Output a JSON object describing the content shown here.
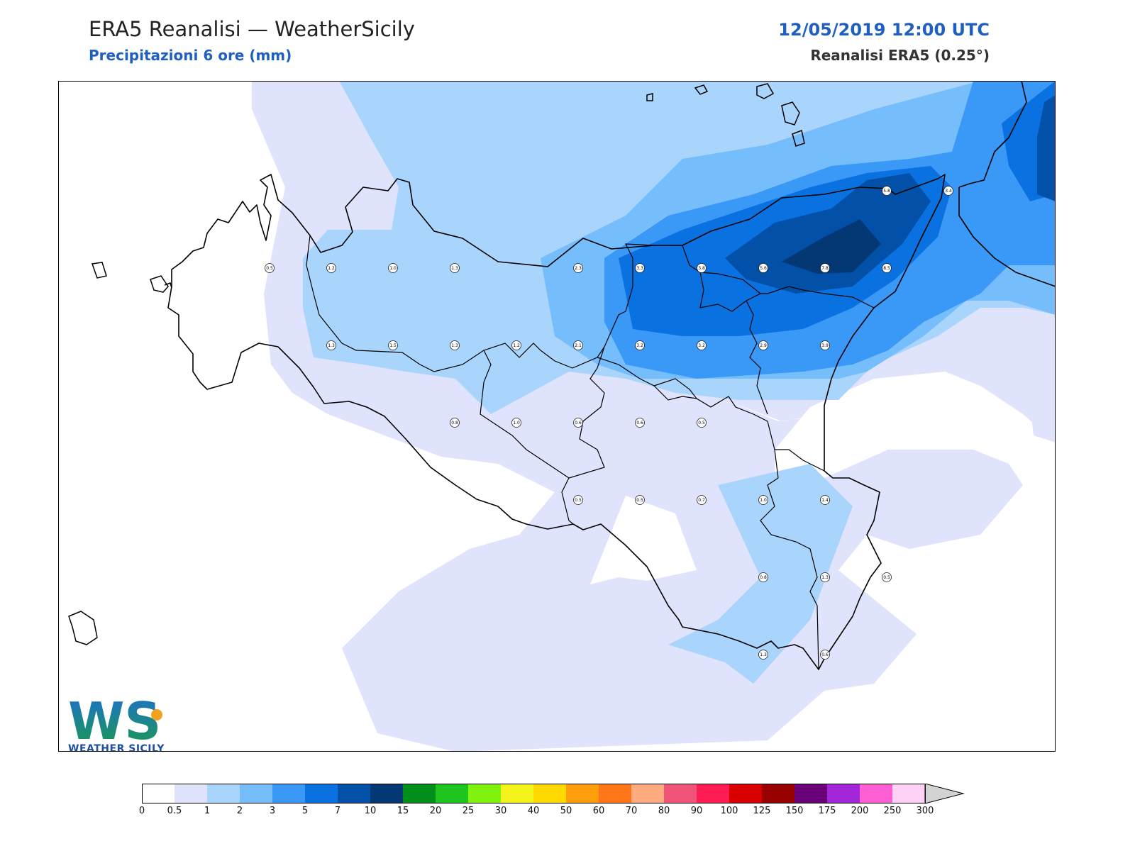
{
  "header": {
    "title": "ERA5 Reanalisi — WeatherSicily",
    "subtitle": "Precipitazioni 6 ore (mm)",
    "datetime": "12/05/2019 12:00 UTC",
    "model": "Reanalisi ERA5 (0.25°)"
  },
  "logo": {
    "text": "WEATHER SICILY",
    "letters": "WS"
  },
  "colorscale": {
    "labels": [
      "0",
      "0.5",
      "1",
      "2",
      "3",
      "5",
      "7",
      "10",
      "15",
      "20",
      "25",
      "30",
      "40",
      "50",
      "60",
      "70",
      "80",
      "90",
      "100",
      "125",
      "150",
      "175",
      "200",
      "250",
      "300"
    ],
    "colors": [
      "#ffffff",
      "#dfe3fc",
      "#a9d4fb",
      "#76bdfb",
      "#3a98f7",
      "#0a72e0",
      "#0250a8",
      "#033874",
      "#008f1a",
      "#1fc41f",
      "#7ff20d",
      "#f4f41a",
      "#ffd900",
      "#ff9d0d",
      "#ff7518",
      "#ffab80",
      "#f05478",
      "#ff1c53",
      "#d90000",
      "#990000",
      "#6a0078",
      "#a327d9",
      "#ff5fd4",
      "#ffd1f6"
    ],
    "extend_color": "#d3d3d3"
  },
  "stations": [
    {
      "v": "0.5",
      "x": 0,
      "y": 0
    },
    {
      "v": "1.2",
      "x": 1,
      "y": 0
    },
    {
      "v": "1.0",
      "x": 2,
      "y": 0
    },
    {
      "v": "1.3",
      "x": 3,
      "y": 0
    },
    {
      "v": "2.3",
      "x": 5,
      "y": 0
    },
    {
      "v": "3.3",
      "x": 6,
      "y": 0
    },
    {
      "v": "3.8",
      "x": 7,
      "y": 0
    },
    {
      "v": "5.6",
      "x": 8,
      "y": 0
    },
    {
      "v": "7.8",
      "x": 9,
      "y": 0
    },
    {
      "v": "8.5",
      "x": 10,
      "y": 0
    },
    {
      "v": "5.8",
      "x": 10,
      "y": -1
    },
    {
      "v": "3.4",
      "x": 11,
      "y": -1
    },
    {
      "v": "1.3",
      "x": 1,
      "y": 1
    },
    {
      "v": "1.5",
      "x": 2,
      "y": 1
    },
    {
      "v": "1.3",
      "x": 3,
      "y": 1
    },
    {
      "v": "1.2",
      "x": 4,
      "y": 1
    },
    {
      "v": "2.1",
      "x": 5,
      "y": 1
    },
    {
      "v": "3.2",
      "x": 6,
      "y": 1
    },
    {
      "v": "3.2",
      "x": 7,
      "y": 1
    },
    {
      "v": "2.9",
      "x": 8,
      "y": 1
    },
    {
      "v": "3.9",
      "x": 9,
      "y": 1
    },
    {
      "v": "0.8",
      "x": 3,
      "y": 2
    },
    {
      "v": "1.0",
      "x": 4,
      "y": 2
    },
    {
      "v": "0.6",
      "x": 5,
      "y": 2
    },
    {
      "v": "0.6",
      "x": 6,
      "y": 2
    },
    {
      "v": "0.5",
      "x": 7,
      "y": 2
    },
    {
      "v": "0.5",
      "x": 5,
      "y": 3
    },
    {
      "v": "0.5",
      "x": 6,
      "y": 3
    },
    {
      "v": "0.7",
      "x": 7,
      "y": 3
    },
    {
      "v": "1.0",
      "x": 8,
      "y": 3
    },
    {
      "v": "1.4",
      "x": 9,
      "y": 3
    },
    {
      "v": "0.8",
      "x": 8,
      "y": 4
    },
    {
      "v": "1.3",
      "x": 9,
      "y": 4
    },
    {
      "v": "0.5",
      "x": 10,
      "y": 4
    },
    {
      "v": "1.3",
      "x": 8,
      "y": 5
    },
    {
      "v": "0.6",
      "x": 9,
      "y": 5
    }
  ]
}
